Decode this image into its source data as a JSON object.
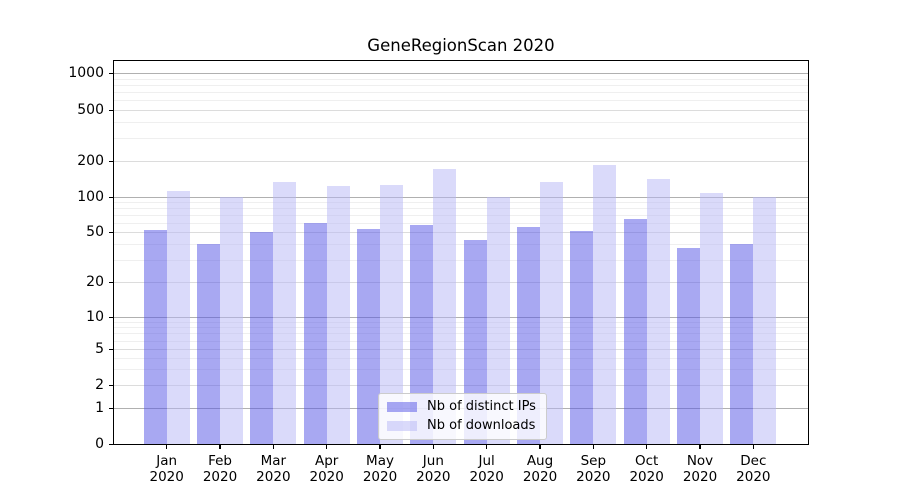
{
  "chart_data": {
    "type": "bar",
    "title": "GeneRegionScan 2020",
    "categories": [
      "Jan",
      "Feb",
      "Mar",
      "Apr",
      "May",
      "Jun",
      "Jul",
      "Aug",
      "Sep",
      "Oct",
      "Nov",
      "Dec"
    ],
    "category_sub": "2020",
    "series": [
      {
        "name": "Nb of distinct IPs",
        "color": "#5151e5",
        "alpha": 0.5,
        "values": [
          52,
          40,
          50,
          60,
          53,
          58,
          43,
          55,
          51,
          65,
          37,
          40
        ]
      },
      {
        "name": "Nb of downloads",
        "color": "#b5b5f5",
        "alpha": 0.5,
        "values": [
          112,
          100,
          133,
          124,
          125,
          172,
          100,
          133,
          186,
          142,
          109,
          100
        ]
      }
    ],
    "xlabel": "",
    "ylabel": "",
    "yscale": "symlog",
    "ylim": [
      0,
      1250
    ],
    "yticks": [
      0,
      1,
      2,
      5,
      10,
      20,
      50,
      100,
      200,
      500,
      1000
    ],
    "ytick_labels": [
      "0",
      "1",
      "2",
      "5",
      "10",
      "20",
      "50",
      "100",
      "200",
      "500",
      "1000"
    ],
    "grid": true,
    "legend_position": "lower-center-inside"
  },
  "colors": {
    "grid_major": "#b0b0b0",
    "grid_minor_labeled": "#dcdcdc",
    "grid_minor": "#efefef",
    "axis": "#000000",
    "legend_border": "#cccccc"
  }
}
